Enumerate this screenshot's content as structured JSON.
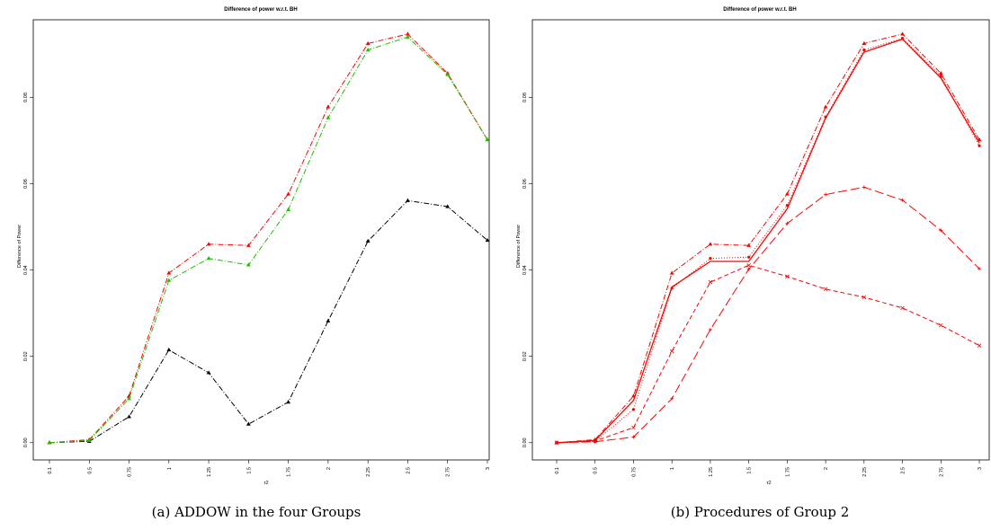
{
  "chart_data": [
    {
      "type": "line",
      "title": "Difference of power w.r.t. BH",
      "xlabel": "τ2",
      "ylabel": "Difference of Power",
      "caption": "(a) ADDOW in the four Groups",
      "categories": [
        "0.1",
        "0.5",
        "0.75",
        "1",
        "1.25",
        "1.5",
        "1.75",
        "2",
        "2.25",
        "2.5",
        "2.75",
        "3"
      ],
      "yticks": [
        "0.00",
        "0.02",
        "0.04",
        "0.06",
        "0.08"
      ],
      "ylim": [
        -0.004,
        0.098
      ],
      "grid": false,
      "series": [
        {
          "color": "#000000",
          "dash": "dashdot",
          "marker": "triangle",
          "values": [
            0.0,
            0.0003,
            0.006,
            0.0215,
            0.0162,
            0.0043,
            0.0094,
            0.0282,
            0.0467,
            0.0561,
            0.0547,
            0.0469
          ]
        },
        {
          "color": "#ff0000",
          "dash": "dashdot",
          "marker": "triangle",
          "values": [
            0.0,
            0.0007,
            0.0108,
            0.0393,
            0.046,
            0.0457,
            0.0576,
            0.0778,
            0.0925,
            0.0947,
            0.0856,
            0.0702
          ]
        },
        {
          "color": "#22bb00",
          "dash": "dashdot",
          "marker": "triangle",
          "values": [
            0.0,
            0.0005,
            0.0102,
            0.0376,
            0.0427,
            0.0412,
            0.054,
            0.0753,
            0.091,
            0.094,
            0.0853,
            0.0702
          ]
        }
      ]
    },
    {
      "type": "line",
      "title": "Difference of power w.r.t. BH",
      "xlabel": "τ2",
      "ylabel": "Difference of Power",
      "caption": "(b) Procedures of Group 2",
      "categories": [
        "0.1",
        "0.5",
        "0.75",
        "1",
        "1.25",
        "1.5",
        "1.75",
        "2",
        "2.25",
        "2.5",
        "2.75",
        "3"
      ],
      "yticks": [
        "0.00",
        "0.02",
        "0.04",
        "0.06",
        "0.08"
      ],
      "ylim": [
        -0.004,
        0.098
      ],
      "grid": false,
      "series": [
        {
          "color": "#ff0000",
          "dash": "solid",
          "marker": "none",
          "values": [
            0.0,
            0.0005,
            0.0098,
            0.0361,
            0.042,
            0.042,
            0.0542,
            0.0752,
            0.0905,
            0.0935,
            0.0845,
            0.0695
          ]
        },
        {
          "color": "#ff0000",
          "dash": "dotted",
          "marker": "dot",
          "values": [
            0.0,
            0.0003,
            0.0077,
            0.0358,
            0.0427,
            0.043,
            0.055,
            0.0755,
            0.091,
            0.0937,
            0.085,
            0.0688
          ]
        },
        {
          "color": "#ff0000",
          "dash": "dashdot",
          "marker": "triangle",
          "values": [
            0.0,
            0.0007,
            0.0108,
            0.0393,
            0.046,
            0.0457,
            0.0576,
            0.0778,
            0.0925,
            0.0947,
            0.0856,
            0.0702
          ]
        },
        {
          "color": "#ff0000",
          "dash": "longdash",
          "marker": "plus",
          "values": [
            0.0,
            0.0002,
            0.0013,
            0.0102,
            0.0262,
            0.0402,
            0.0508,
            0.0575,
            0.0592,
            0.0562,
            0.0492,
            0.0403
          ]
        },
        {
          "color": "#ff0000",
          "dash": "dashed",
          "marker": "cross",
          "values": [
            0.0,
            0.0004,
            0.0035,
            0.0212,
            0.0372,
            0.0411,
            0.0385,
            0.0356,
            0.0337,
            0.0312,
            0.0272,
            0.0225
          ]
        }
      ]
    }
  ]
}
